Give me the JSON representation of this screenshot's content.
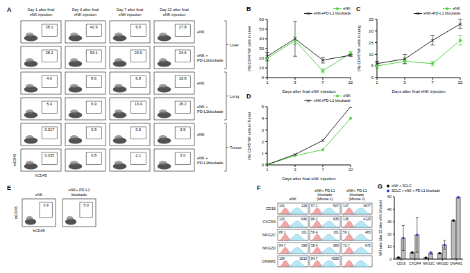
{
  "panel_A": {
    "label": "A",
    "columns": [
      "Day 1 after final eNK injection",
      "Day 3 after final eNK injection",
      "Day 7 after final eNK injection",
      "Day 22 after final eNK injection"
    ],
    "x_label": "hCD45",
    "y_label": "mCD45",
    "groups": [
      {
        "name": "Liver",
        "rows": [
          {
            "name": "eNK",
            "values": [
              "28.1",
              "42.9",
              "9.5",
              "27.8"
            ]
          },
          {
            "name": "eNK + PD-L1blockade",
            "values": [
              "28.2",
              "53.1",
              "23.5",
              "24.6"
            ]
          }
        ]
      },
      {
        "name": "Lung",
        "rows": [
          {
            "name": "eNK",
            "values": [
              "4.0",
              "8.6",
              "6.8",
              "19.8"
            ]
          },
          {
            "name": "eNK + PD-L1blockade",
            "values": [
              "5.4",
              "6.9",
              "13.4",
              "26.2"
            ]
          }
        ]
      },
      {
        "name": "Tumor",
        "rows": [
          {
            "name": "eNK",
            "values": [
              "0.017",
              "0.9",
              "0.5",
              "3.9"
            ]
          },
          {
            "name": "eNK + PD-L1blockade",
            "values": [
              "0.035",
              "0.8",
              "2.1",
              "5.0"
            ]
          }
        ]
      }
    ]
  },
  "panel_E": {
    "label": "E",
    "x_label": "hCD45",
    "y_label": "mCD45",
    "plots": [
      {
        "name": "eNK",
        "value": "3.9"
      },
      {
        "name": "eNK+ PD-L1 blockade",
        "value": "5.0"
      }
    ]
  },
  "panel_F": {
    "label": "F",
    "columns": [
      "eNK",
      "eNK+ PD-L1 blockade (Mouse 1)",
      "eNK+ PD-L1 blockade (Mouse 2)"
    ],
    "rows": [
      {
        "name": "CD16",
        "values": [
          [
            "101",
            "128"
          ],
          [
            "57.1",
            "507"
          ],
          [
            "147",
            "3677"
          ]
        ]
      },
      {
        "name": "CXCR4",
        "values": [
          [
            "123",
            "646"
          ],
          [
            "86.2",
            "835"
          ],
          [
            "138",
            "4125"
          ]
        ]
      },
      {
        "name": "NKG2C",
        "values": [
          [
            "86.1",
            "101"
          ],
          [
            "56.4",
            "161"
          ],
          [
            "59.1",
            "483"
          ]
        ]
      },
      {
        "name": "NKG2D",
        "values": [
          [
            "84.7",
            "398"
          ],
          [
            "58.4",
            "880"
          ],
          [
            "72.7",
            "675"
          ]
        ]
      },
      {
        "name": "DNAM1",
        "values": [
          [
            "104",
            "3210"
          ],
          [
            "84.7",
            "4206"
          ],
          null
        ]
      }
    ]
  },
  "chart_data": [
    {
      "panel": "B",
      "type": "line",
      "x_label": "Days after final eNK injection",
      "y_label": "(%) CD45⁺NK cells in Liver",
      "categories": [
        1,
        3,
        7,
        22
      ],
      "ylim": [
        0,
        60
      ],
      "yticks": [
        0,
        10,
        20,
        30,
        40,
        50,
        60
      ],
      "legend": "upper right",
      "series": [
        {
          "name": "eNK",
          "color": "#4cd13c",
          "marker": "circle",
          "values": [
            20,
            38,
            7,
            25
          ],
          "errors": [
            3,
            4,
            2,
            2
          ]
        },
        {
          "name": "eNK+PD-L1 blockade",
          "color": "#222222",
          "marker": "cross",
          "values": [
            22,
            40,
            18,
            23
          ],
          "errors": [
            4,
            18,
            3,
            1
          ]
        }
      ]
    },
    {
      "panel": "C",
      "type": "line",
      "x_label": "Days after final eNK injection",
      "y_label": "(%) CD45⁺NK cells in Lung",
      "categories": [
        1,
        3,
        7,
        22
      ],
      "ylim": [
        0,
        25
      ],
      "yticks": [
        0,
        5,
        10,
        15,
        20,
        25
      ],
      "legend": "upper right",
      "series": [
        {
          "name": "eNK",
          "color": "#4cd13c",
          "marker": "circle",
          "values": [
            5,
            7,
            6,
            16
          ],
          "errors": [
            1,
            1,
            1,
            2
          ]
        },
        {
          "name": "eNK+PD-L1 blockade",
          "color": "#222222",
          "marker": "cross",
          "values": [
            6,
            8,
            16,
            23
          ],
          "errors": [
            1,
            2,
            2,
            2
          ]
        }
      ]
    },
    {
      "panel": "D",
      "type": "line",
      "x_label": "Days after final eNK injection",
      "y_label": "(%) CD45⁺NK cells in Tumor",
      "categories": [
        1,
        3,
        7,
        22
      ],
      "ylim": [
        0,
        5
      ],
      "yticks": [
        0,
        1,
        2,
        3,
        4,
        5
      ],
      "legend": "upper right",
      "series": [
        {
          "name": "eNK",
          "color": "#4cd13c",
          "marker": "circle",
          "values": [
            0.02,
            0.8,
            1.3,
            4.0
          ]
        },
        {
          "name": "eNK+PD-L1 blockade",
          "color": "#222222",
          "marker": "cross",
          "values": [
            0.03,
            0.9,
            2.1,
            5.0
          ]
        }
      ]
    },
    {
      "panel": "G",
      "type": "bar",
      "y_label": "MFI ratio (day 22 after eNK infusion)",
      "categories": [
        "CD16",
        "CXCR4",
        "NKG2C",
        "NKG2D",
        "DNAM1"
      ],
      "ylim": [
        0,
        50
      ],
      "yticks": [
        0,
        10,
        20,
        30,
        40,
        50
      ],
      "legend": "upper left",
      "series": [
        {
          "name": "eNK + SCLC",
          "color": "#000000",
          "values": [
            1.3,
            5.3,
            1.2,
            4.7,
            31
          ],
          "errors": [
            0.3,
            0.5,
            0.2,
            0.5,
            0.5
          ]
        },
        {
          "name": "SCLC + eNK + PD-L1 blockade",
          "color": "#2233dd",
          "values": [
            17,
            19.5,
            5,
            11.5,
            49.5
          ],
          "errors": [
            10,
            14,
            1,
            3.5,
            0.5
          ]
        }
      ]
    }
  ]
}
